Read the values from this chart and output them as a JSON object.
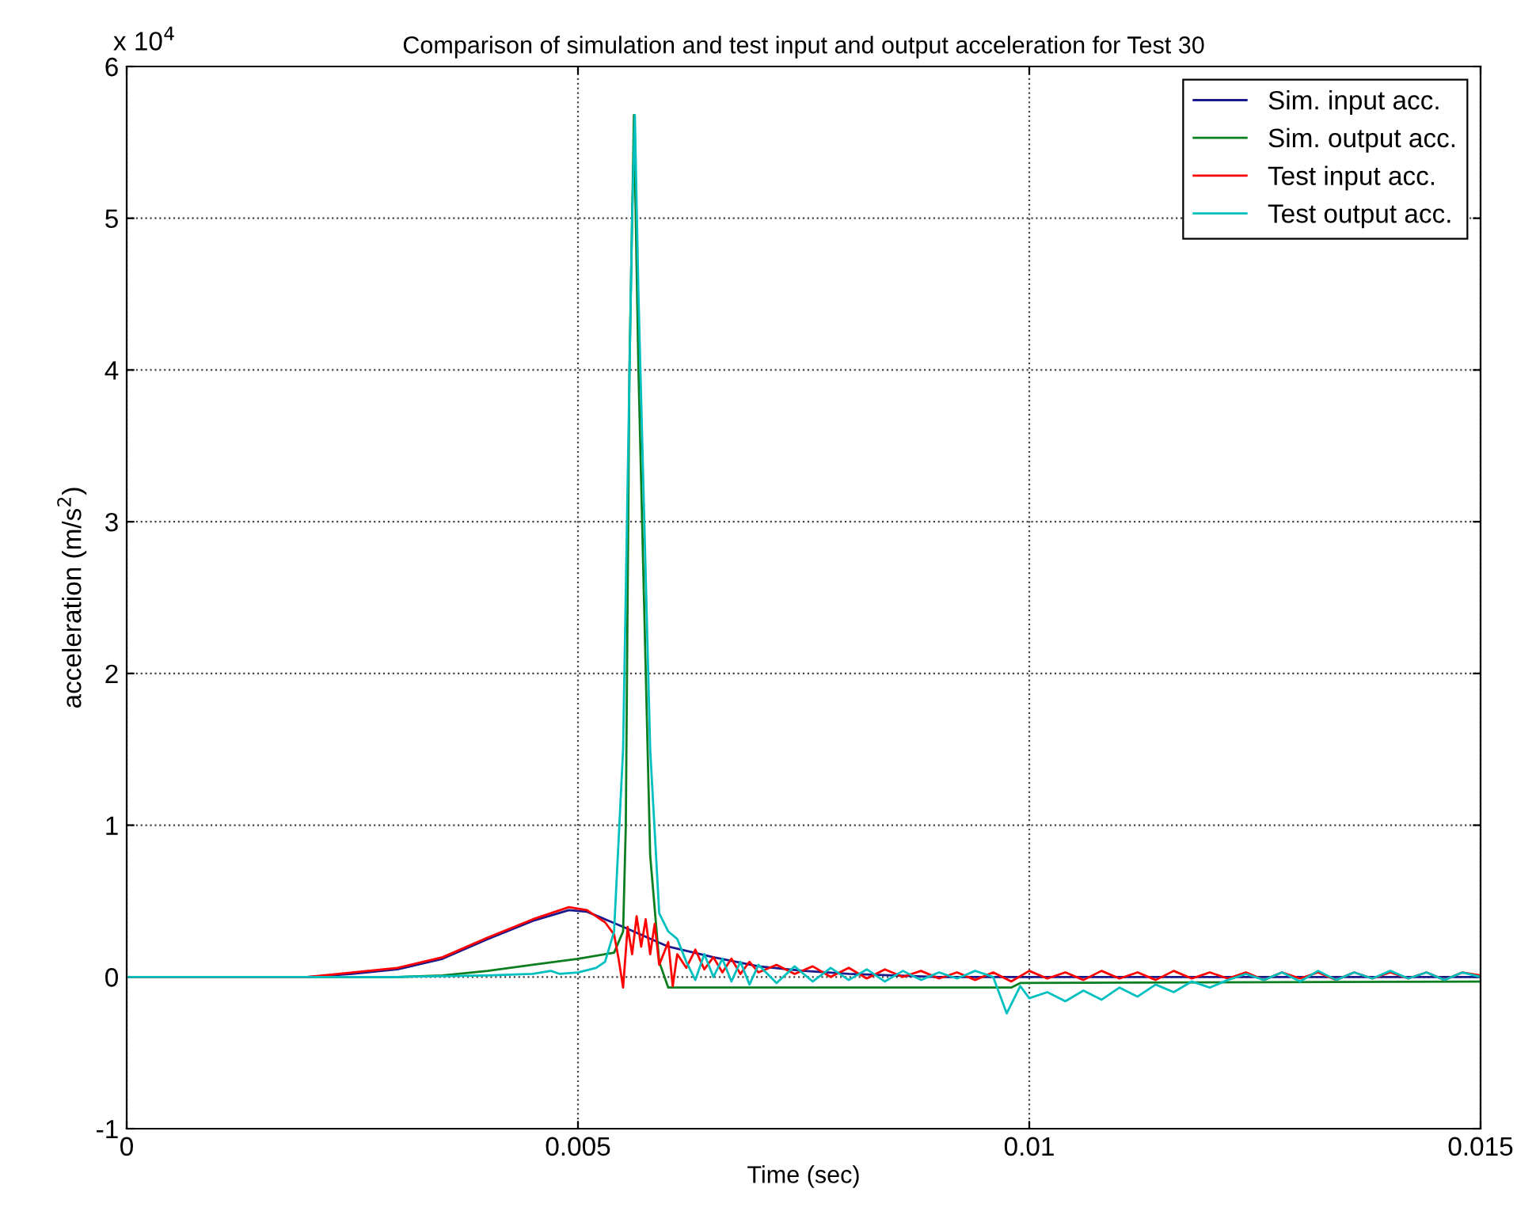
{
  "chart_data": {
    "type": "line",
    "title": "Comparison of simulation and test input and output acceleration for Test 30",
    "xlabel": "Time (sec)",
    "ylabel": "acceleration (m/s$^{2}$)",
    "annotations": [
      "x 10$^{4}$"
    ],
    "xlim": [
      0,
      0.015
    ],
    "xticks": [
      0,
      0.005,
      0.01,
      0.015
    ],
    "ylim": [
      -1,
      6
    ],
    "yticks": [
      -1,
      0,
      1,
      2,
      3,
      4,
      5,
      6
    ],
    "grid": true,
    "legend": "top right",
    "line_style": "solid",
    "marker": "none",
    "series": [
      {
        "name": "Sim. input acc.",
        "color": "#1a1a8c",
        "x": [
          0,
          0.002,
          0.0025,
          0.003,
          0.0035,
          0.004,
          0.0045,
          0.0049,
          0.0051,
          0.0055,
          0.006,
          0.0065,
          0.007,
          0.0075,
          0.008,
          0.009,
          0.015
        ],
        "values": [
          0,
          0,
          0.02,
          0.05,
          0.12,
          0.25,
          0.37,
          0.44,
          0.43,
          0.33,
          0.2,
          0.13,
          0.07,
          0.04,
          0.02,
          0,
          0
        ]
      },
      {
        "name": "Sim. output acc.",
        "color": "#0b7f1f",
        "x": [
          0,
          0.003,
          0.0035,
          0.004,
          0.0045,
          0.005,
          0.0054,
          0.0055,
          0.00553,
          0.00557,
          0.00562,
          0.00567,
          0.0058,
          0.0059,
          0.006,
          0.0098,
          0.0099,
          0.015
        ],
        "values": [
          0,
          0,
          0.01,
          0.04,
          0.08,
          0.12,
          0.16,
          0.3,
          1,
          4,
          5.68,
          4,
          0.8,
          0.1,
          -0.07,
          -0.07,
          -0.04,
          -0.03
        ]
      },
      {
        "name": "Test input acc.",
        "color": "#ff0000",
        "x": [
          0,
          0.002,
          0.003,
          0.0035,
          0.004,
          0.0045,
          0.0049,
          0.0051,
          0.0053,
          0.0054,
          0.00545,
          0.0055,
          0.00555,
          0.0056,
          0.00565,
          0.0057,
          0.00575,
          0.0058,
          0.00585,
          0.0059,
          0.006,
          0.00605,
          0.0061,
          0.0062,
          0.0063,
          0.0064,
          0.0065,
          0.0066,
          0.0067,
          0.0068,
          0.0069,
          0.007,
          0.0072,
          0.0074,
          0.0076,
          0.0078,
          0.008,
          0.0082,
          0.0084,
          0.0086,
          0.0088,
          0.009,
          0.0092,
          0.0094,
          0.0096,
          0.0098,
          0.01,
          0.0102,
          0.0104,
          0.0106,
          0.0108,
          0.011,
          0.0112,
          0.0114,
          0.0116,
          0.0118,
          0.012,
          0.0122,
          0.0124,
          0.0126,
          0.0128,
          0.013,
          0.0132,
          0.0134,
          0.0136,
          0.0138,
          0.014,
          0.0142,
          0.0144,
          0.0146,
          0.0148,
          0.015
        ],
        "values": [
          0,
          0,
          0.06,
          0.13,
          0.26,
          0.38,
          0.46,
          0.44,
          0.36,
          0.28,
          0.12,
          -0.07,
          0.33,
          0.15,
          0.4,
          0.2,
          0.38,
          0.15,
          0.35,
          0.08,
          0.23,
          -0.06,
          0.15,
          0.06,
          0.18,
          0.05,
          0.13,
          0.03,
          0.12,
          0.02,
          0.1,
          0.03,
          0.08,
          0.02,
          0.07,
          0,
          0.06,
          -0.01,
          0.05,
          0,
          0.04,
          -0.01,
          0.03,
          -0.02,
          0.03,
          -0.03,
          0.04,
          -0.01,
          0.03,
          -0.02,
          0.04,
          -0.01,
          0.03,
          -0.02,
          0.04,
          -0.01,
          0.03,
          -0.01,
          0.03,
          -0.02,
          0.03,
          -0.01,
          0.03,
          -0.02,
          0.03,
          -0.01,
          0.03,
          -0.01,
          0.03,
          -0.02,
          0.03,
          0.01
        ]
      },
      {
        "name": "Test output acc.",
        "color": "#00bfbf",
        "x": [
          0,
          0.003,
          0.004,
          0.0045,
          0.0047,
          0.0048,
          0.005,
          0.0052,
          0.0053,
          0.0054,
          0.0055,
          0.0056,
          0.00563,
          0.00567,
          0.0058,
          0.0059,
          0.006,
          0.0061,
          0.0062,
          0.0063,
          0.0064,
          0.0065,
          0.0066,
          0.0067,
          0.0068,
          0.0069,
          0.007,
          0.0072,
          0.0074,
          0.0076,
          0.0078,
          0.008,
          0.0082,
          0.0084,
          0.0086,
          0.0088,
          0.009,
          0.0092,
          0.0094,
          0.0096,
          0.00975,
          0.0099,
          0.01,
          0.0102,
          0.0104,
          0.0106,
          0.0108,
          0.011,
          0.0112,
          0.0114,
          0.0116,
          0.0118,
          0.012,
          0.0122,
          0.0124,
          0.0126,
          0.0128,
          0.013,
          0.0132,
          0.0134,
          0.0136,
          0.0138,
          0.014,
          0.0142,
          0.0144,
          0.0146,
          0.0148,
          0.015
        ],
        "values": [
          0,
          0,
          0.01,
          0.02,
          0.04,
          0.02,
          0.03,
          0.06,
          0.1,
          0.3,
          1.5,
          5,
          5.68,
          4.5,
          1.5,
          0.42,
          0.3,
          0.25,
          0.1,
          -0.02,
          0.15,
          0,
          0.12,
          -0.03,
          0.1,
          -0.05,
          0.08,
          -0.04,
          0.07,
          -0.03,
          0.06,
          -0.02,
          0.05,
          -0.03,
          0.04,
          -0.02,
          0.03,
          -0.01,
          0.04,
          0,
          -0.24,
          -0.06,
          -0.14,
          -0.1,
          -0.16,
          -0.09,
          -0.15,
          -0.07,
          -0.13,
          -0.05,
          -0.1,
          -0.03,
          -0.07,
          -0.02,
          0.02,
          -0.02,
          0.03,
          -0.03,
          0.04,
          -0.02,
          0.03,
          -0.01,
          0.04,
          -0.01,
          0.03,
          -0.02,
          0.03,
          0
        ]
      }
    ]
  }
}
